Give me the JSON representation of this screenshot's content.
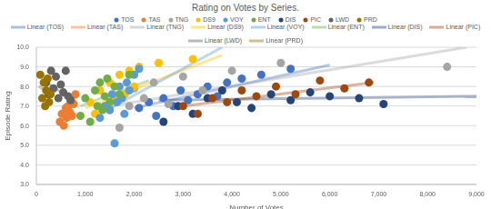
{
  "chart_data": {
    "type": "scatter",
    "title": "Rating on Votes by Series.",
    "x_label": "Number of Votes",
    "y_label": "Episode Rating",
    "xlim": [
      0,
      9000
    ],
    "xticks": [
      0,
      {
        "value": 1000,
        "label": "1,000"
      },
      {
        "value": 2000,
        "label": "2,000"
      },
      {
        "value": 3000,
        "label": "3,000"
      },
      {
        "value": 4000,
        "label": "4,000"
      },
      {
        "value": 5000,
        "label": "5,000"
      },
      {
        "value": 6000,
        "label": "6,000"
      },
      {
        "value": 7000,
        "label": "7,000"
      },
      {
        "value": 8000,
        "label": "8,000"
      },
      {
        "value": 9000,
        "label": "9,000"
      }
    ],
    "ylim": [
      3,
      10
    ],
    "yticks": [
      {
        "value": 3,
        "label": "3.0"
      },
      {
        "value": 4,
        "label": "4.0"
      },
      {
        "value": 5,
        "label": "5.0"
      },
      {
        "value": 6,
        "label": "6.0"
      },
      {
        "value": 7,
        "label": "7.0"
      },
      {
        "value": 8,
        "label": "8.0"
      },
      {
        "value": 9,
        "label": "9.0"
      },
      {
        "value": 10,
        "label": "10.0"
      }
    ],
    "grid": true,
    "legend": "top",
    "series": [
      {
        "name": "TOS",
        "type": "scatter",
        "marker": "circle",
        "color": "#4472C4",
        "x": [
          2100,
          2300,
          2450,
          2600,
          2800,
          2950,
          3100,
          3300,
          3500,
          3700,
          3900,
          4200,
          4600,
          5200
        ],
        "values": [
          6.9,
          7.2,
          6.5,
          7.4,
          7.0,
          7.8,
          7.3,
          7.6,
          8.0,
          7.5,
          8.2,
          8.4,
          8.6,
          8.9
        ]
      },
      {
        "name": "TAS",
        "type": "scatter",
        "marker": "circle",
        "color": "#ED7D31",
        "x": [
          480,
          520,
          560,
          600,
          620,
          650,
          680,
          700,
          730,
          760,
          800
        ],
        "values": [
          6.2,
          6.6,
          6.0,
          6.9,
          6.4,
          7.0,
          6.7,
          7.3,
          6.5,
          7.1,
          7.6
        ]
      },
      {
        "name": "TNG",
        "type": "scatter",
        "marker": "circle",
        "color": "#A5A5A5",
        "x": [
          1500,
          1600,
          1700,
          1800,
          1900,
          2000,
          2200,
          2400,
          2700,
          3000,
          3400,
          4000,
          5000,
          8400
        ],
        "values": [
          6.8,
          7.3,
          5.9,
          7.6,
          7.0,
          7.9,
          7.4,
          8.2,
          7.1,
          8.5,
          7.8,
          8.8,
          9.2,
          9.0
        ]
      },
      {
        "name": "DS9",
        "type": "scatter",
        "marker": "circle",
        "color": "#FFC000",
        "x": [
          1100,
          1200,
          1300,
          1400,
          1500,
          1600,
          1700,
          1800,
          1900,
          2000,
          2100,
          2500,
          3200
        ],
        "values": [
          7.2,
          6.6,
          7.8,
          7.0,
          8.2,
          7.4,
          8.6,
          7.6,
          8.8,
          8.0,
          9.0,
          9.2,
          9.4
        ]
      },
      {
        "name": "VOY",
        "type": "scatter",
        "marker": "circle",
        "color": "#5B9BD5",
        "x": [
          1300,
          1400,
          1500,
          1550,
          1600,
          1650,
          1700,
          1750,
          1800,
          1850,
          1900,
          2000,
          2100
        ],
        "values": [
          6.4,
          7.0,
          6.8,
          7.6,
          5.1,
          7.2,
          8.0,
          7.4,
          6.6,
          8.2,
          7.8,
          8.6,
          8.9
        ]
      },
      {
        "name": "ENT",
        "type": "scatter",
        "marker": "circle",
        "color": "#70AD47",
        "x": [
          900,
          1000,
          1100,
          1200,
          1250,
          1300,
          1350,
          1400,
          1450,
          1500,
          1600,
          1700,
          1900
        ],
        "values": [
          6.5,
          7.4,
          6.2,
          7.8,
          7.0,
          8.2,
          6.8,
          7.5,
          8.4,
          7.2,
          8.0,
          7.6,
          8.6
        ]
      },
      {
        "name": "DIS",
        "type": "scatter",
        "marker": "circle",
        "color": "#264478",
        "x": [
          2600,
          2900,
          3200,
          3500,
          3800,
          4100,
          4400,
          4800,
          5200,
          5600,
          6000,
          6600,
          7100
        ],
        "values": [
          6.2,
          7.0,
          6.6,
          7.4,
          7.8,
          7.2,
          6.9,
          7.6,
          7.3,
          7.7,
          7.5,
          7.4,
          7.1
        ]
      },
      {
        "name": "PIC",
        "type": "scatter",
        "marker": "circle",
        "color": "#9E480E",
        "x": [
          3000,
          3300,
          3600,
          3900,
          4200,
          4500,
          4900,
          5300,
          5800,
          6300,
          6800
        ],
        "values": [
          7.0,
          6.6,
          7.4,
          7.2,
          7.8,
          7.5,
          8.0,
          7.6,
          8.3,
          7.9,
          8.2
        ]
      },
      {
        "name": "LWD",
        "type": "scatter",
        "marker": "circle",
        "color": "#636363",
        "x": [
          200,
          250,
          300,
          350,
          400,
          450,
          500,
          550,
          600,
          650,
          700
        ],
        "values": [
          8.2,
          7.6,
          8.8,
          7.9,
          8.5,
          7.4,
          8.1,
          7.7,
          8.8,
          7.5,
          7.3
        ]
      },
      {
        "name": "PRD",
        "type": "scatter",
        "marker": "circle",
        "color": "#997300",
        "x": [
          80,
          120,
          150,
          180,
          200,
          230,
          260,
          290
        ],
        "values": [
          8.6,
          7.4,
          8.2,
          7.0,
          7.8,
          8.4,
          7.2,
          7.6
        ]
      },
      {
        "name": "Linear (TOS)",
        "type": "line",
        "line_style": "solid",
        "color": "#4472C4",
        "x": [
          2000,
          6000
        ],
        "values": [
          6.9,
          9.1
        ]
      },
      {
        "name": "Linear (TAS)",
        "type": "line",
        "line_style": "solid",
        "color": "#ED7D31",
        "x": [
          450,
          820
        ],
        "values": [
          6.2,
          7.4
        ]
      },
      {
        "name": "Linear (TNG)",
        "type": "line",
        "line_style": "solid",
        "color": "#A5A5A5",
        "x": [
          1500,
          8800
        ],
        "values": [
          7.0,
          10.0
        ]
      },
      {
        "name": "Linear (DS9)",
        "type": "line",
        "line_style": "solid",
        "color": "#FFC000",
        "x": [
          1000,
          3800
        ],
        "values": [
          6.9,
          9.6
        ]
      },
      {
        "name": "Linear (VOY)",
        "type": "line",
        "line_style": "solid",
        "color": "#5B9BD5",
        "x": [
          1300,
          3800
        ],
        "values": [
          6.6,
          10.0
        ]
      },
      {
        "name": "Linear (ENT)",
        "type": "line",
        "line_style": "solid",
        "color": "#70AD47",
        "x": [
          900,
          2300
        ],
        "values": [
          7.0,
          8.3
        ]
      },
      {
        "name": "Linear (DIS)",
        "type": "line",
        "line_style": "solid",
        "color": "#264478",
        "x": [
          2500,
          9000
        ],
        "values": [
          7.3,
          7.5
        ]
      },
      {
        "name": "Linear (PIC)",
        "type": "line",
        "line_style": "solid",
        "color": "#9E480E",
        "x": [
          3000,
          6900
        ],
        "values": [
          7.0,
          8.2
        ]
      },
      {
        "name": "Linear (LWD)",
        "type": "line",
        "line_style": "solid",
        "color": "#636363",
        "x": [
          150,
          750
        ],
        "values": [
          8.3,
          7.3
        ]
      },
      {
        "name": "Linear (PRD)",
        "type": "line",
        "line_style": "solid",
        "color": "#997300",
        "x": [
          50,
          320
        ],
        "values": [
          8.0,
          7.6
        ]
      }
    ]
  }
}
